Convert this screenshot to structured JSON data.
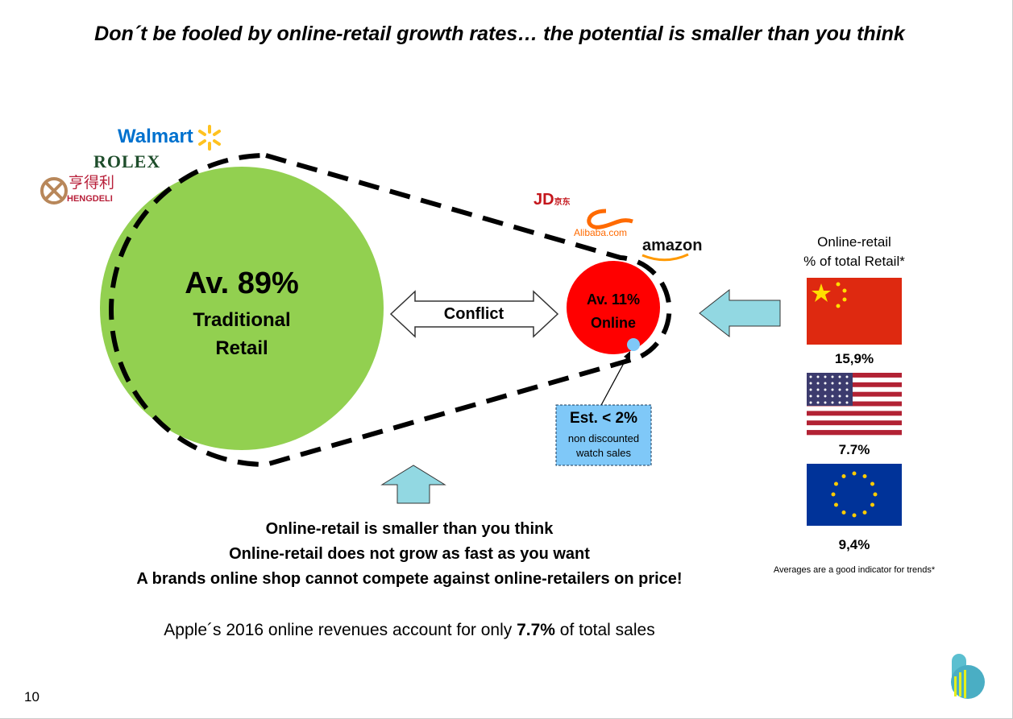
{
  "title": "Don´t be fooled by online-retail growth rates… the potential is smaller than you think",
  "logos": {
    "walmart": "Walmart",
    "rolex": "ROLEX",
    "hengdeli_cn": "亨得利",
    "hengdeli": "HENGDELI",
    "jd": "JD.COM",
    "jd_cn": "京东",
    "alibaba": "Alibaba.com",
    "amazon": "amazon"
  },
  "traditional": {
    "value": "Av. 89%",
    "label_1": "Traditional",
    "label_2": "Retail",
    "color": "#92d050"
  },
  "online": {
    "value": "Av. 11%",
    "label": "Online",
    "color": "#ff0000"
  },
  "conflict": "Conflict",
  "callout": {
    "value": "Est. < 2%",
    "line_1": "non discounted",
    "line_2": "watch sales",
    "color": "#7fc8f8"
  },
  "side": {
    "header_1": "Online-retail",
    "header_2": "% of total Retail*",
    "countries": [
      {
        "flag": "china-flag",
        "value": "15,9%"
      },
      {
        "flag": "usa-flag",
        "value": "7.7%"
      },
      {
        "flag": "eu-flag",
        "value": "9,4%"
      }
    ],
    "footnote": "Averages are a good indicator for trends*"
  },
  "bullets": [
    "Online-retail is smaller than you think",
    "Online-retail does not grow as fast as you want",
    "A brands online shop cannot compete against online-retailers on price!"
  ],
  "apple": {
    "prefix": "Apple´s 2016 online revenues account for only ",
    "highlight": "7.7%",
    "suffix": " of total sales"
  },
  "page_number": "10",
  "arrow_color": "#92d8e2"
}
